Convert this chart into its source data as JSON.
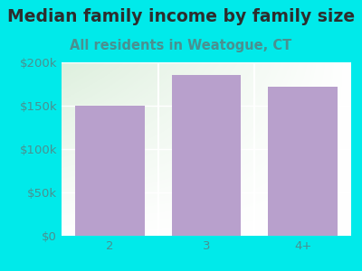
{
  "title": "Median family income by family size",
  "subtitle": "All residents in Weatogue, CT",
  "categories": [
    "2",
    "3",
    "4+"
  ],
  "values": [
    150000,
    185000,
    172000
  ],
  "bar_color": "#b8a0cc",
  "background_color": "#00eaea",
  "plot_bg_top_left": "#dff0de",
  "plot_bg_bottom_right": "#f5fbf5",
  "title_color": "#2d2d2d",
  "subtitle_color": "#4a9090",
  "tick_label_color": "#4a9090",
  "ylim": [
    0,
    200000
  ],
  "yticks": [
    0,
    50000,
    100000,
    150000,
    200000
  ],
  "ytick_labels": [
    "$0",
    "$50k",
    "$100k",
    "$150k",
    "$200k"
  ],
  "title_fontsize": 13.5,
  "subtitle_fontsize": 10.5,
  "tick_fontsize": 9.5
}
